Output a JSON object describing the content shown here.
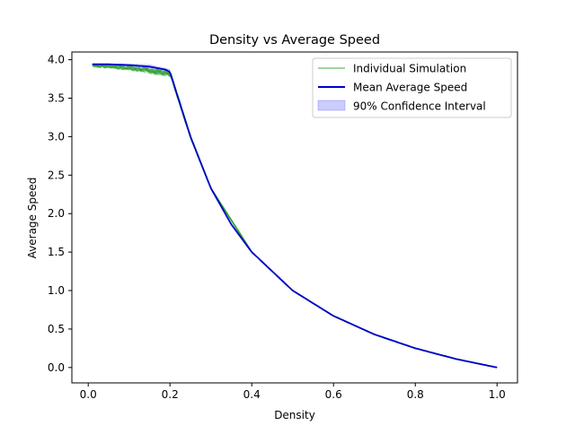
{
  "chart_data": {
    "type": "line",
    "title": "Density vs Average Speed",
    "xlabel": "Density",
    "ylabel": "Average Speed",
    "xlim": [
      -0.04,
      1.05
    ],
    "ylim": [
      -0.2,
      4.1
    ],
    "grid": false,
    "legend_position": "top-right",
    "x_ticks": [
      "0.0",
      "0.2",
      "0.4",
      "0.6",
      "0.8",
      "1.0"
    ],
    "y_ticks": [
      "0.0",
      "0.5",
      "1.0",
      "1.5",
      "2.0",
      "2.5",
      "3.0",
      "3.5",
      "4.0"
    ],
    "x_tick_values": [
      0.0,
      0.2,
      0.4,
      0.6,
      0.8,
      1.0
    ],
    "y_tick_values": [
      0.0,
      0.5,
      1.0,
      1.5,
      2.0,
      2.5,
      3.0,
      3.5,
      4.0
    ],
    "series": [
      {
        "name": "Individual Simulation",
        "color": "#2ca02c",
        "note": "multiple noisy simulation runs plotted semi-transparent",
        "x": [
          0.01,
          0.05,
          0.1,
          0.15,
          0.2,
          0.22,
          0.25,
          0.3,
          0.4,
          0.5,
          0.6,
          0.7,
          0.8,
          0.9,
          1.0
        ],
        "y": [
          3.93,
          3.92,
          3.9,
          3.87,
          3.83,
          3.5,
          3.0,
          2.33,
          1.5,
          1.0,
          0.67,
          0.43,
          0.25,
          0.11,
          0.0
        ]
      },
      {
        "name": "Mean Average Speed",
        "color": "#0000cc",
        "x": [
          0.01,
          0.05,
          0.1,
          0.15,
          0.19,
          0.2,
          0.22,
          0.25,
          0.3,
          0.35,
          0.4,
          0.5,
          0.6,
          0.7,
          0.8,
          0.9,
          1.0
        ],
        "y": [
          3.94,
          3.94,
          3.93,
          3.91,
          3.87,
          3.84,
          3.5,
          3.0,
          2.33,
          1.86,
          1.5,
          1.0,
          0.67,
          0.43,
          0.25,
          0.11,
          0.0
        ]
      }
    ],
    "confidence_interval": {
      "name": "90% Confidence Interval",
      "color": "#0000ff",
      "x": [
        0.01,
        0.05,
        0.1,
        0.15,
        0.2,
        0.25
      ],
      "lower": [
        3.93,
        3.92,
        3.89,
        3.86,
        3.8,
        3.0
      ],
      "upper": [
        3.95,
        3.95,
        3.95,
        3.94,
        3.88,
        3.0
      ]
    }
  }
}
